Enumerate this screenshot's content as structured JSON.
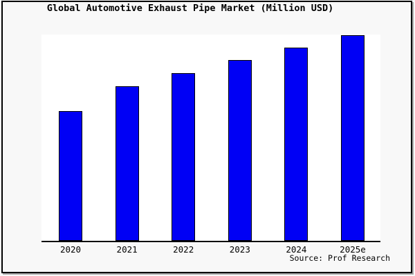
{
  "title": "Global Automotive Exhaust Pipe Market (Million USD)",
  "source": "Source: Prof Research",
  "colors": {
    "bar_fill": "#0000f5",
    "bar_border": "#000000",
    "plot_bg": "#ffffff",
    "figure_bg": "#f8f8f8",
    "axis": "#000000",
    "frame_border": "#000000",
    "text": "#000000"
  },
  "chart_data": {
    "type": "bar",
    "title": "Global Automotive Exhaust Pipe Market (Million USD)",
    "categories": [
      "2020",
      "2021",
      "2022",
      "2023",
      "2024",
      "2025e"
    ],
    "values": [
      63,
      75.3,
      81.7,
      88,
      94,
      100
    ],
    "unit": "Million USD",
    "xlabel": "",
    "ylabel": "",
    "ylim": [
      0,
      100
    ],
    "grid": false,
    "legend_position": "none",
    "y_axis_ticks_visible": false,
    "values_are_relative_pct_of_tallest_bar": true,
    "source_annotation": "Source: Prof Research"
  }
}
